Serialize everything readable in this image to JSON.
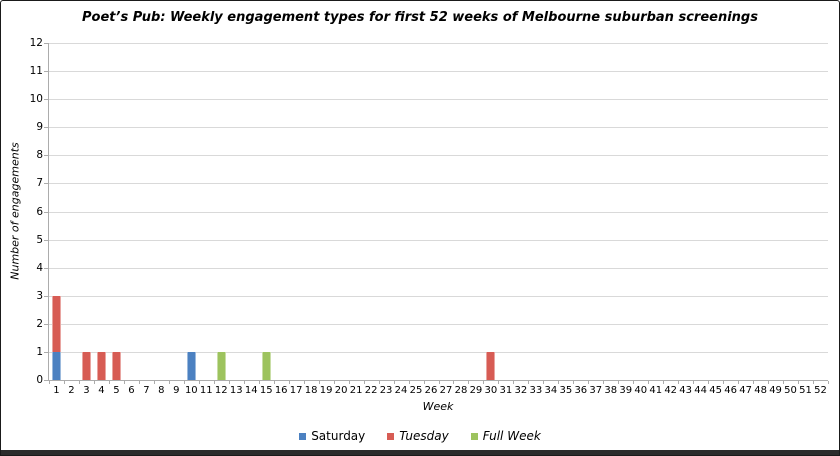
{
  "colors": {
    "grid": "#D9D9D9",
    "axis": "#ACACAC",
    "text": "#000000",
    "frame_border": "#1A1A1A",
    "bottom_strip": "#2B2B2B"
  },
  "chart_data": {
    "type": "bar",
    "stacked": true,
    "title": "Poet’s Pub: Weekly engagement types for first 52 weeks of Melbourne suburban screenings",
    "xlabel": "Week",
    "ylabel": "Number of engagements",
    "ylim": [
      0,
      12
    ],
    "yticks": [
      0,
      1,
      2,
      3,
      4,
      5,
      6,
      7,
      8,
      9,
      10,
      11,
      12
    ],
    "grid": true,
    "categories": [
      1,
      2,
      3,
      4,
      5,
      6,
      7,
      8,
      9,
      10,
      11,
      12,
      13,
      14,
      15,
      16,
      17,
      18,
      19,
      20,
      21,
      22,
      23,
      24,
      25,
      26,
      27,
      28,
      29,
      30,
      31,
      32,
      33,
      34,
      35,
      36,
      37,
      38,
      39,
      40,
      41,
      42,
      43,
      44,
      45,
      46,
      47,
      48,
      49,
      50,
      51,
      52
    ],
    "series": [
      {
        "name": "Saturday",
        "color": "#4C81C1",
        "values": [
          1,
          0,
          0,
          0,
          0,
          0,
          0,
          0,
          0,
          1,
          0,
          0,
          0,
          0,
          0,
          0,
          0,
          0,
          0,
          0,
          0,
          0,
          0,
          0,
          0,
          0,
          0,
          0,
          0,
          0,
          0,
          0,
          0,
          0,
          0,
          0,
          0,
          0,
          0,
          0,
          0,
          0,
          0,
          0,
          0,
          0,
          0,
          0,
          0,
          0,
          0,
          0
        ]
      },
      {
        "name": "Tuesday",
        "color": "#D75C54",
        "values": [
          2,
          0,
          1,
          1,
          1,
          0,
          0,
          0,
          0,
          0,
          0,
          0,
          0,
          0,
          0,
          0,
          0,
          0,
          0,
          0,
          0,
          0,
          0,
          0,
          0,
          0,
          0,
          0,
          0,
          1,
          0,
          0,
          0,
          0,
          0,
          0,
          0,
          0,
          0,
          0,
          0,
          0,
          0,
          0,
          0,
          0,
          0,
          0,
          0,
          0,
          0,
          0
        ]
      },
      {
        "name": "Full Week",
        "color": "#9DC35E",
        "values": [
          0,
          0,
          0,
          0,
          0,
          0,
          0,
          0,
          0,
          0,
          0,
          1,
          0,
          0,
          1,
          0,
          0,
          0,
          0,
          0,
          0,
          0,
          0,
          0,
          0,
          0,
          0,
          0,
          0,
          0,
          0,
          0,
          0,
          0,
          0,
          0,
          0,
          0,
          0,
          0,
          0,
          0,
          0,
          0,
          0,
          0,
          0,
          0,
          0,
          0,
          0,
          0
        ]
      }
    ],
    "legend": {
      "position": "bottom",
      "items": [
        {
          "label": "Saturday",
          "italic": false
        },
        {
          "label": "Tuesday",
          "italic": true
        },
        {
          "label": "Full Week",
          "italic": true
        }
      ]
    }
  }
}
